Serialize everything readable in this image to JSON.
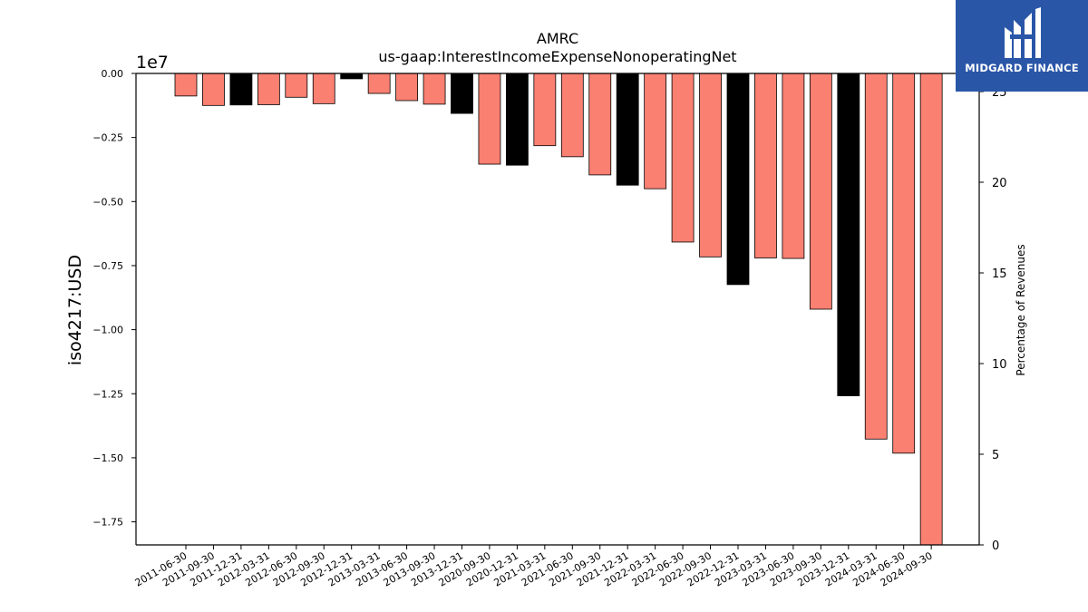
{
  "logo": {
    "text": "MIDGARD FINANCE",
    "color": "#2a56a8"
  },
  "chart_data": {
    "type": "bar",
    "title": "AMRC",
    "subtitle": "us-gaap:InterestIncomeExpenseNonoperatingNet",
    "ylabel": "iso4217:USD",
    "y_offset_label": "1e7",
    "y2label": "Percentage of Revenues",
    "ylim": [
      -18400000,
      0
    ],
    "y_ticks": [
      0,
      -2500000,
      -5000000,
      -7500000,
      -10000000,
      -12500000,
      -15000000,
      -17500000
    ],
    "y_tick_labels": [
      "0.00",
      "−0.25",
      "−0.50",
      "−0.75",
      "−1.00",
      "−1.25",
      "−1.50",
      "−1.75"
    ],
    "y2lim": [
      0,
      26
    ],
    "y2_ticks": [
      0,
      5,
      10,
      15,
      20,
      25
    ],
    "y2_tick_labels": [
      "0",
      "5",
      "10",
      "15",
      "20",
      "25"
    ],
    "categories": [
      "2011-06-30",
      "2011-09-30",
      "2011-12-31",
      "2012-03-31",
      "2012-06-30",
      "2012-09-30",
      "2012-12-31",
      "2013-03-31",
      "2013-06-30",
      "2013-09-30",
      "2013-12-31",
      "2020-09-30",
      "2020-12-31",
      "2021-03-31",
      "2021-06-30",
      "2021-09-30",
      "2021-12-31",
      "2022-03-31",
      "2022-06-30",
      "2022-09-30",
      "2022-12-31",
      "2023-03-31",
      "2023-06-30",
      "2023-09-30",
      "2023-12-31",
      "2024-03-31",
      "2024-06-30",
      "2024-09-30"
    ],
    "values": [
      -880000,
      -1250000,
      -1230000,
      -1220000,
      -930000,
      -1180000,
      -210000,
      -780000,
      -1060000,
      -1200000,
      -1560000,
      -3540000,
      -3580000,
      -2820000,
      -3250000,
      -3960000,
      -4360000,
      -4500000,
      -6580000,
      -7160000,
      -8240000,
      -7200000,
      -7220000,
      -9200000,
      -12580000,
      -14270000,
      -14820000,
      -18400000
    ],
    "bar_colors": [
      "#fa8072",
      "#fa8072",
      "#000000",
      "#fa8072",
      "#fa8072",
      "#fa8072",
      "#000000",
      "#fa8072",
      "#fa8072",
      "#fa8072",
      "#000000",
      "#fa8072",
      "#000000",
      "#fa8072",
      "#fa8072",
      "#fa8072",
      "#000000",
      "#fa8072",
      "#fa8072",
      "#fa8072",
      "#000000",
      "#fa8072",
      "#fa8072",
      "#fa8072",
      "#000000",
      "#fa8072",
      "#fa8072",
      "#fa8072"
    ],
    "grid": false,
    "legend": "none"
  }
}
